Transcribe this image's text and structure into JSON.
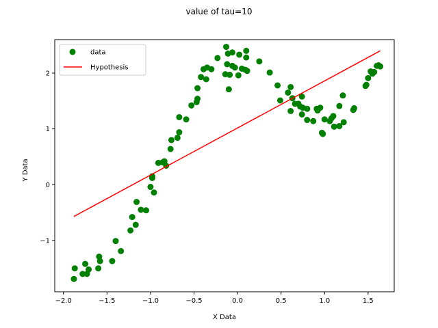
{
  "chart_data": {
    "type": "scatter",
    "title": "value of tau=10",
    "xlabel": "X Data",
    "ylabel": "Y Data",
    "xlim": [
      -2.1,
      1.8
    ],
    "ylim": [
      -1.92,
      2.6
    ],
    "x_ticks": [
      -2.0,
      -1.5,
      -1.0,
      -0.5,
      0.0,
      0.5,
      1.0,
      1.5
    ],
    "x_tick_labels": [
      "−2.0",
      "−1.5",
      "−1.0",
      "−0.5",
      "0.0",
      "0.5",
      "1.0",
      "1.5"
    ],
    "y_ticks": [
      -1,
      0,
      1,
      2
    ],
    "y_tick_labels": [
      "−1",
      "0",
      "1",
      "2"
    ],
    "grid": false,
    "legend": {
      "position": "top-left",
      "entries": [
        {
          "label": "data",
          "marker": "circle",
          "color": "#008000"
        },
        {
          "label": "Hypothesis",
          "marker": "line",
          "color": "#ff0000"
        }
      ]
    },
    "series": [
      {
        "name": "data",
        "kind": "scatter",
        "color": "#008000",
        "points": [
          [
            -1.88,
            -1.69
          ],
          [
            -1.87,
            -1.5
          ],
          [
            -1.78,
            -1.6
          ],
          [
            -1.75,
            -1.42
          ],
          [
            -1.73,
            -1.6
          ],
          [
            -1.71,
            -1.52
          ],
          [
            -1.6,
            -1.5
          ],
          [
            -1.59,
            -1.29
          ],
          [
            -1.58,
            -1.37
          ],
          [
            -1.44,
            -1.37
          ],
          [
            -1.4,
            -1.01
          ],
          [
            -1.34,
            -1.19
          ],
          [
            -1.23,
            -0.82
          ],
          [
            -1.21,
            -0.58
          ],
          [
            -1.17,
            -0.72
          ],
          [
            -1.16,
            -0.31
          ],
          [
            -1.11,
            -0.45
          ],
          [
            -1.05,
            -0.46
          ],
          [
            -1.0,
            -0.04
          ],
          [
            -0.98,
            0.12
          ],
          [
            -0.98,
            0.15
          ],
          [
            -0.96,
            -0.14
          ],
          [
            -0.91,
            0.39
          ],
          [
            -0.86,
            0.4
          ],
          [
            -0.84,
            0.42
          ],
          [
            -0.82,
            0.34
          ],
          [
            -0.77,
            0.64
          ],
          [
            -0.76,
            0.8
          ],
          [
            -0.69,
            0.84
          ],
          [
            -0.67,
            0.94
          ],
          [
            -0.67,
            1.21
          ],
          [
            -0.59,
            1.17
          ],
          [
            -0.53,
            1.42
          ],
          [
            -0.47,
            1.48
          ],
          [
            -0.46,
            1.54
          ],
          [
            -0.46,
            1.73
          ],
          [
            -0.42,
            1.93
          ],
          [
            -0.39,
            2.07
          ],
          [
            -0.36,
            1.89
          ],
          [
            -0.35,
            2.1
          ],
          [
            -0.3,
            2.07
          ],
          [
            -0.23,
            2.27
          ],
          [
            -0.14,
            1.98
          ],
          [
            -0.13,
            2.47
          ],
          [
            -0.12,
            2.16
          ],
          [
            -0.11,
            2.35
          ],
          [
            -0.1,
            1.71
          ],
          [
            -0.09,
            1.97
          ],
          [
            -0.06,
            2.13
          ],
          [
            -0.06,
            2.37
          ],
          [
            -0.03,
            2.1
          ],
          [
            0.01,
            1.96
          ],
          [
            0.02,
            2.33
          ],
          [
            0.05,
            2.08
          ],
          [
            0.09,
            2.06
          ],
          [
            0.1,
            2.4
          ],
          [
            0.1,
            2.28
          ],
          [
            0.11,
            2.04
          ],
          [
            0.25,
            2.21
          ],
          [
            0.37,
            2.01
          ],
          [
            0.46,
            1.78
          ],
          [
            0.49,
            1.51
          ],
          [
            0.58,
            1.65
          ],
          [
            0.61,
            1.32
          ],
          [
            0.61,
            1.75
          ],
          [
            0.63,
            1.55
          ],
          [
            0.66,
            1.45
          ],
          [
            0.7,
            1.45
          ],
          [
            0.72,
            1.4
          ],
          [
            0.74,
            1.26
          ],
          [
            0.74,
            1.58
          ],
          [
            0.75,
            1.38
          ],
          [
            0.8,
            1.16
          ],
          [
            0.8,
            1.36
          ],
          [
            0.87,
            1.14
          ],
          [
            0.91,
            1.36
          ],
          [
            0.92,
            1.33
          ],
          [
            0.95,
            1.38
          ],
          [
            0.97,
            0.93
          ],
          [
            0.98,
            0.91
          ],
          [
            1.0,
            1.17
          ],
          [
            1.06,
            1.14
          ],
          [
            1.08,
            1.19
          ],
          [
            1.1,
            1.23
          ],
          [
            1.11,
            1.04
          ],
          [
            1.17,
            1.05
          ],
          [
            1.17,
            1.41
          ],
          [
            1.21,
            1.6
          ],
          [
            1.22,
            1.12
          ],
          [
            1.33,
            1.34
          ],
          [
            1.34,
            1.37
          ],
          [
            1.47,
            1.77
          ],
          [
            1.48,
            1.79
          ],
          [
            1.5,
            1.91
          ],
          [
            1.53,
            2.03
          ],
          [
            1.55,
            1.99
          ],
          [
            1.57,
            2.02
          ],
          [
            1.6,
            2.13
          ],
          [
            1.62,
            2.14
          ],
          [
            1.64,
            2.12
          ]
        ]
      },
      {
        "name": "Hypothesis",
        "kind": "line",
        "color": "#ff0000",
        "points": [
          [
            -1.88,
            -0.57
          ],
          [
            1.64,
            2.4
          ]
        ]
      }
    ]
  }
}
